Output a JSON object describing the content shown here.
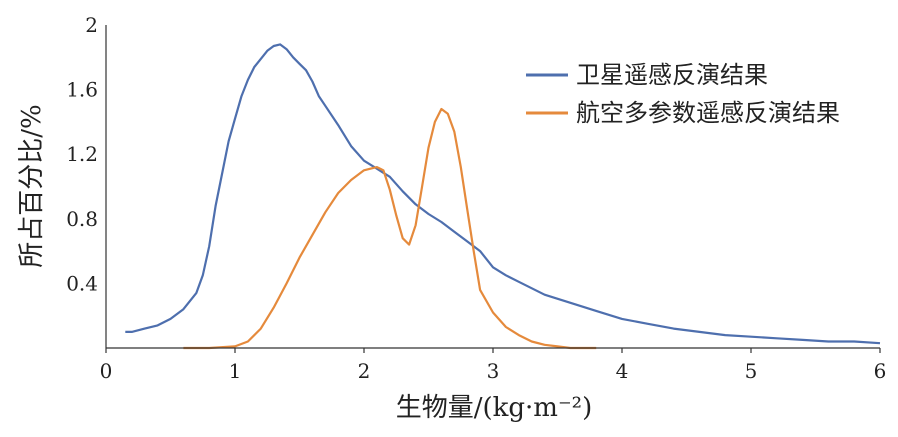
{
  "chart_data": {
    "type": "line",
    "xlabel": "生物量/(kg·m⁻²)",
    "ylabel": "所占百分比/%",
    "xlim": [
      0,
      6
    ],
    "ylim": [
      0,
      2
    ],
    "x_ticks": [
      "0",
      "1",
      "2",
      "3",
      "4",
      "5",
      "6"
    ],
    "y_ticks": [
      "0.4",
      "0.8",
      "1.2",
      "1.6",
      "2"
    ],
    "grid": false,
    "legend_position": "top-right",
    "series": [
      {
        "name": "卫星遥感反演结果",
        "color": "#4e6fae",
        "x": [
          0.15,
          0.2,
          0.3,
          0.4,
          0.5,
          0.6,
          0.7,
          0.75,
          0.8,
          0.85,
          0.9,
          0.95,
          1.0,
          1.05,
          1.1,
          1.15,
          1.2,
          1.25,
          1.3,
          1.35,
          1.4,
          1.45,
          1.5,
          1.55,
          1.6,
          1.65,
          1.7,
          1.8,
          1.9,
          2.0,
          2.1,
          2.2,
          2.3,
          2.4,
          2.5,
          2.6,
          2.7,
          2.8,
          2.9,
          3.0,
          3.1,
          3.2,
          3.4,
          3.6,
          3.8,
          4.0,
          4.2,
          4.4,
          4.6,
          4.8,
          5.0,
          5.2,
          5.4,
          5.6,
          5.8,
          6.0
        ],
        "y": [
          0.1,
          0.1,
          0.12,
          0.14,
          0.18,
          0.24,
          0.34,
          0.45,
          0.63,
          0.88,
          1.08,
          1.28,
          1.42,
          1.56,
          1.66,
          1.74,
          1.79,
          1.84,
          1.87,
          1.88,
          1.85,
          1.8,
          1.76,
          1.72,
          1.65,
          1.56,
          1.5,
          1.38,
          1.25,
          1.16,
          1.11,
          1.06,
          0.97,
          0.89,
          0.83,
          0.78,
          0.72,
          0.66,
          0.6,
          0.5,
          0.45,
          0.41,
          0.33,
          0.28,
          0.23,
          0.18,
          0.15,
          0.12,
          0.1,
          0.08,
          0.07,
          0.06,
          0.05,
          0.04,
          0.04,
          0.03
        ]
      },
      {
        "name": "航空多参数遥感反演结果",
        "color": "#e58a3c",
        "x": [
          0.6,
          0.8,
          1.0,
          1.1,
          1.2,
          1.3,
          1.4,
          1.5,
          1.6,
          1.7,
          1.8,
          1.9,
          2.0,
          2.05,
          2.1,
          2.15,
          2.2,
          2.25,
          2.3,
          2.35,
          2.4,
          2.45,
          2.5,
          2.55,
          2.6,
          2.65,
          2.7,
          2.75,
          2.8,
          2.85,
          2.9,
          3.0,
          3.1,
          3.2,
          3.3,
          3.4,
          3.5,
          3.6,
          3.8
        ],
        "y": [
          0.0,
          0.0,
          0.01,
          0.04,
          0.12,
          0.25,
          0.4,
          0.56,
          0.7,
          0.84,
          0.96,
          1.04,
          1.1,
          1.11,
          1.12,
          1.1,
          0.98,
          0.82,
          0.68,
          0.64,
          0.76,
          1.0,
          1.24,
          1.4,
          1.48,
          1.45,
          1.34,
          1.12,
          0.86,
          0.6,
          0.36,
          0.22,
          0.13,
          0.08,
          0.04,
          0.02,
          0.01,
          0.0,
          0.0
        ]
      }
    ]
  }
}
